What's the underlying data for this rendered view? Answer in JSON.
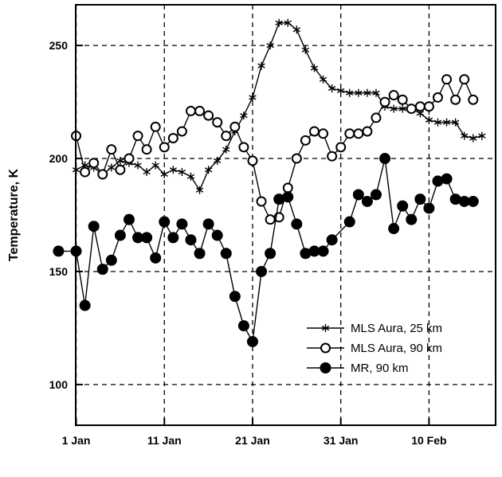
{
  "chart_data": {
    "type": "line",
    "title": "",
    "xlabel": "",
    "ylabel": "Temperature,  K",
    "xlim": [
      "1 Jan",
      "18 Feb"
    ],
    "ylim": [
      82,
      268
    ],
    "grid": true,
    "legend_position": "lower-right",
    "x_ticks": [
      "1 Jan",
      "11 Jan",
      "21 Jan",
      "31 Jan",
      "10 Feb"
    ],
    "y_ticks": [
      "100",
      "150",
      "200",
      "250"
    ],
    "series": [
      {
        "name": "MLS Aura, 25 km",
        "marker": "asterisk",
        "color": "#000000",
        "points": [
          [
            "1 Jan",
            195
          ],
          [
            "2 Jan",
            197
          ],
          [
            "3 Jan",
            196
          ],
          [
            "4 Jan",
            193
          ],
          [
            "5 Jan",
            196
          ],
          [
            "6 Jan",
            199
          ],
          [
            "7 Jan",
            198
          ],
          [
            "8 Jan",
            197
          ],
          [
            "9 Jan",
            194
          ],
          [
            "10 Jan",
            197
          ],
          [
            "11 Jan",
            193
          ],
          [
            "12 Jan",
            195
          ],
          [
            "13 Jan",
            194
          ],
          [
            "14 Jan",
            192
          ],
          [
            "15 Jan",
            186
          ],
          [
            "16 Jan",
            195
          ],
          [
            "17 Jan",
            199
          ],
          [
            "18 Jan",
            204
          ],
          [
            "19 Jan",
            212
          ],
          [
            "20 Jan",
            219
          ],
          [
            "21 Jan",
            227
          ],
          [
            "22 Jan",
            241
          ],
          [
            "23 Jan",
            250
          ],
          [
            "24 Jan",
            260
          ],
          [
            "25 Jan",
            260
          ],
          [
            "26 Jan",
            257
          ],
          [
            "27 Jan",
            248
          ],
          [
            "28 Jan",
            240
          ],
          [
            "29 Jan",
            235
          ],
          [
            "30 Jan",
            231
          ],
          [
            "31 Jan",
            230
          ],
          [
            "1 Feb",
            229
          ],
          [
            "2 Feb",
            229
          ],
          [
            "3 Feb",
            229
          ],
          [
            "4 Feb",
            229
          ],
          [
            "5 Feb",
            223
          ],
          [
            "6 Feb",
            222
          ],
          [
            "7 Feb",
            222
          ],
          [
            "8 Feb",
            222
          ],
          [
            "9 Feb",
            220
          ],
          [
            "10 Feb",
            217
          ],
          [
            "11 Feb",
            216
          ],
          [
            "12 Feb",
            216
          ],
          [
            "13 Feb",
            216
          ],
          [
            "14 Feb",
            210
          ],
          [
            "15 Feb",
            209
          ],
          [
            "16 Feb",
            210
          ]
        ]
      },
      {
        "name": "MLS Aura, 90 km",
        "marker": "open-circle",
        "color": "#000000",
        "points": [
          [
            "1 Jan",
            210
          ],
          [
            "2 Jan",
            194
          ],
          [
            "3 Jan",
            198
          ],
          [
            "4 Jan",
            193
          ],
          [
            "5 Jan",
            204
          ],
          [
            "6 Jan",
            195
          ],
          [
            "7 Jan",
            200
          ],
          [
            "8 Jan",
            210
          ],
          [
            "9 Jan",
            204
          ],
          [
            "10 Jan",
            214
          ],
          [
            "11 Jan",
            205
          ],
          [
            "12 Jan",
            209
          ],
          [
            "13 Jan",
            212
          ],
          [
            "14 Jan",
            221
          ],
          [
            "15 Jan",
            221
          ],
          [
            "16 Jan",
            219
          ],
          [
            "17 Jan",
            216
          ],
          [
            "18 Jan",
            210
          ],
          [
            "19 Jan",
            214
          ],
          [
            "20 Jan",
            205
          ],
          [
            "21 Jan",
            199
          ],
          [
            "22 Jan",
            181
          ],
          [
            "23 Jan",
            173
          ],
          [
            "24 Jan",
            174
          ],
          [
            "25 Jan",
            187
          ],
          [
            "26 Jan",
            200
          ],
          [
            "27 Jan",
            208
          ],
          [
            "28 Jan",
            212
          ],
          [
            "29 Jan",
            211
          ],
          [
            "30 Jan",
            201
          ],
          [
            "31 Jan",
            205
          ],
          [
            "1 Feb",
            211
          ],
          [
            "2 Feb",
            211
          ],
          [
            "3 Feb",
            212
          ],
          [
            "4 Feb",
            218
          ],
          [
            "5 Feb",
            225
          ],
          [
            "6 Feb",
            228
          ],
          [
            "7 Feb",
            226
          ],
          [
            "8 Feb",
            222
          ],
          [
            "9 Feb",
            223
          ],
          [
            "10 Feb",
            223
          ],
          [
            "11 Feb",
            227
          ],
          [
            "12 Feb",
            235
          ],
          [
            "13 Feb",
            226
          ],
          [
            "14 Feb",
            235
          ],
          [
            "15 Feb",
            226
          ]
        ]
      },
      {
        "name": "MR, 90 km",
        "marker": "filled-circle",
        "color": "#000000",
        "points": [
          [
            "31 Dec",
            159
          ],
          [
            "1 Jan",
            159
          ],
          [
            "2 Jan",
            135
          ],
          [
            "3 Jan",
            170
          ],
          [
            "4 Jan",
            151
          ],
          [
            "5 Jan",
            155
          ],
          [
            "6 Jan",
            166
          ],
          [
            "7 Jan",
            173
          ],
          [
            "8 Jan",
            165
          ],
          [
            "9 Jan",
            165
          ],
          [
            "10 Jan",
            156
          ],
          [
            "11 Jan",
            172
          ],
          [
            "12 Jan",
            165
          ],
          [
            "13 Jan",
            171
          ],
          [
            "14 Jan",
            164
          ],
          [
            "15 Jan",
            158
          ],
          [
            "16 Jan",
            171
          ],
          [
            "17 Jan",
            166
          ],
          [
            "18 Jan",
            158
          ],
          [
            "19 Jan",
            139
          ],
          [
            "20 Jan",
            126
          ],
          [
            "21 Jan",
            119
          ],
          [
            "22 Jan",
            150
          ],
          [
            "23 Jan",
            158
          ],
          [
            "24 Jan",
            182
          ],
          [
            "25 Jan",
            183
          ],
          [
            "26 Jan",
            171
          ],
          [
            "27 Jan",
            158
          ],
          [
            "28 Jan",
            159
          ],
          [
            "29 Jan",
            159
          ],
          [
            "30 Jan",
            164
          ],
          [
            "1 Feb",
            172
          ],
          [
            "2 Feb",
            184
          ],
          [
            "3 Feb",
            181
          ],
          [
            "4 Feb",
            184
          ],
          [
            "5 Feb",
            200
          ],
          [
            "6 Feb",
            169
          ],
          [
            "7 Feb",
            179
          ],
          [
            "8 Feb",
            173
          ],
          [
            "9 Feb",
            182
          ],
          [
            "10 Feb",
            178
          ],
          [
            "11 Feb",
            190
          ],
          [
            "12 Feb",
            191
          ],
          [
            "13 Feb",
            182
          ],
          [
            "14 Feb",
            181
          ],
          [
            "15 Feb",
            181
          ]
        ]
      }
    ]
  }
}
